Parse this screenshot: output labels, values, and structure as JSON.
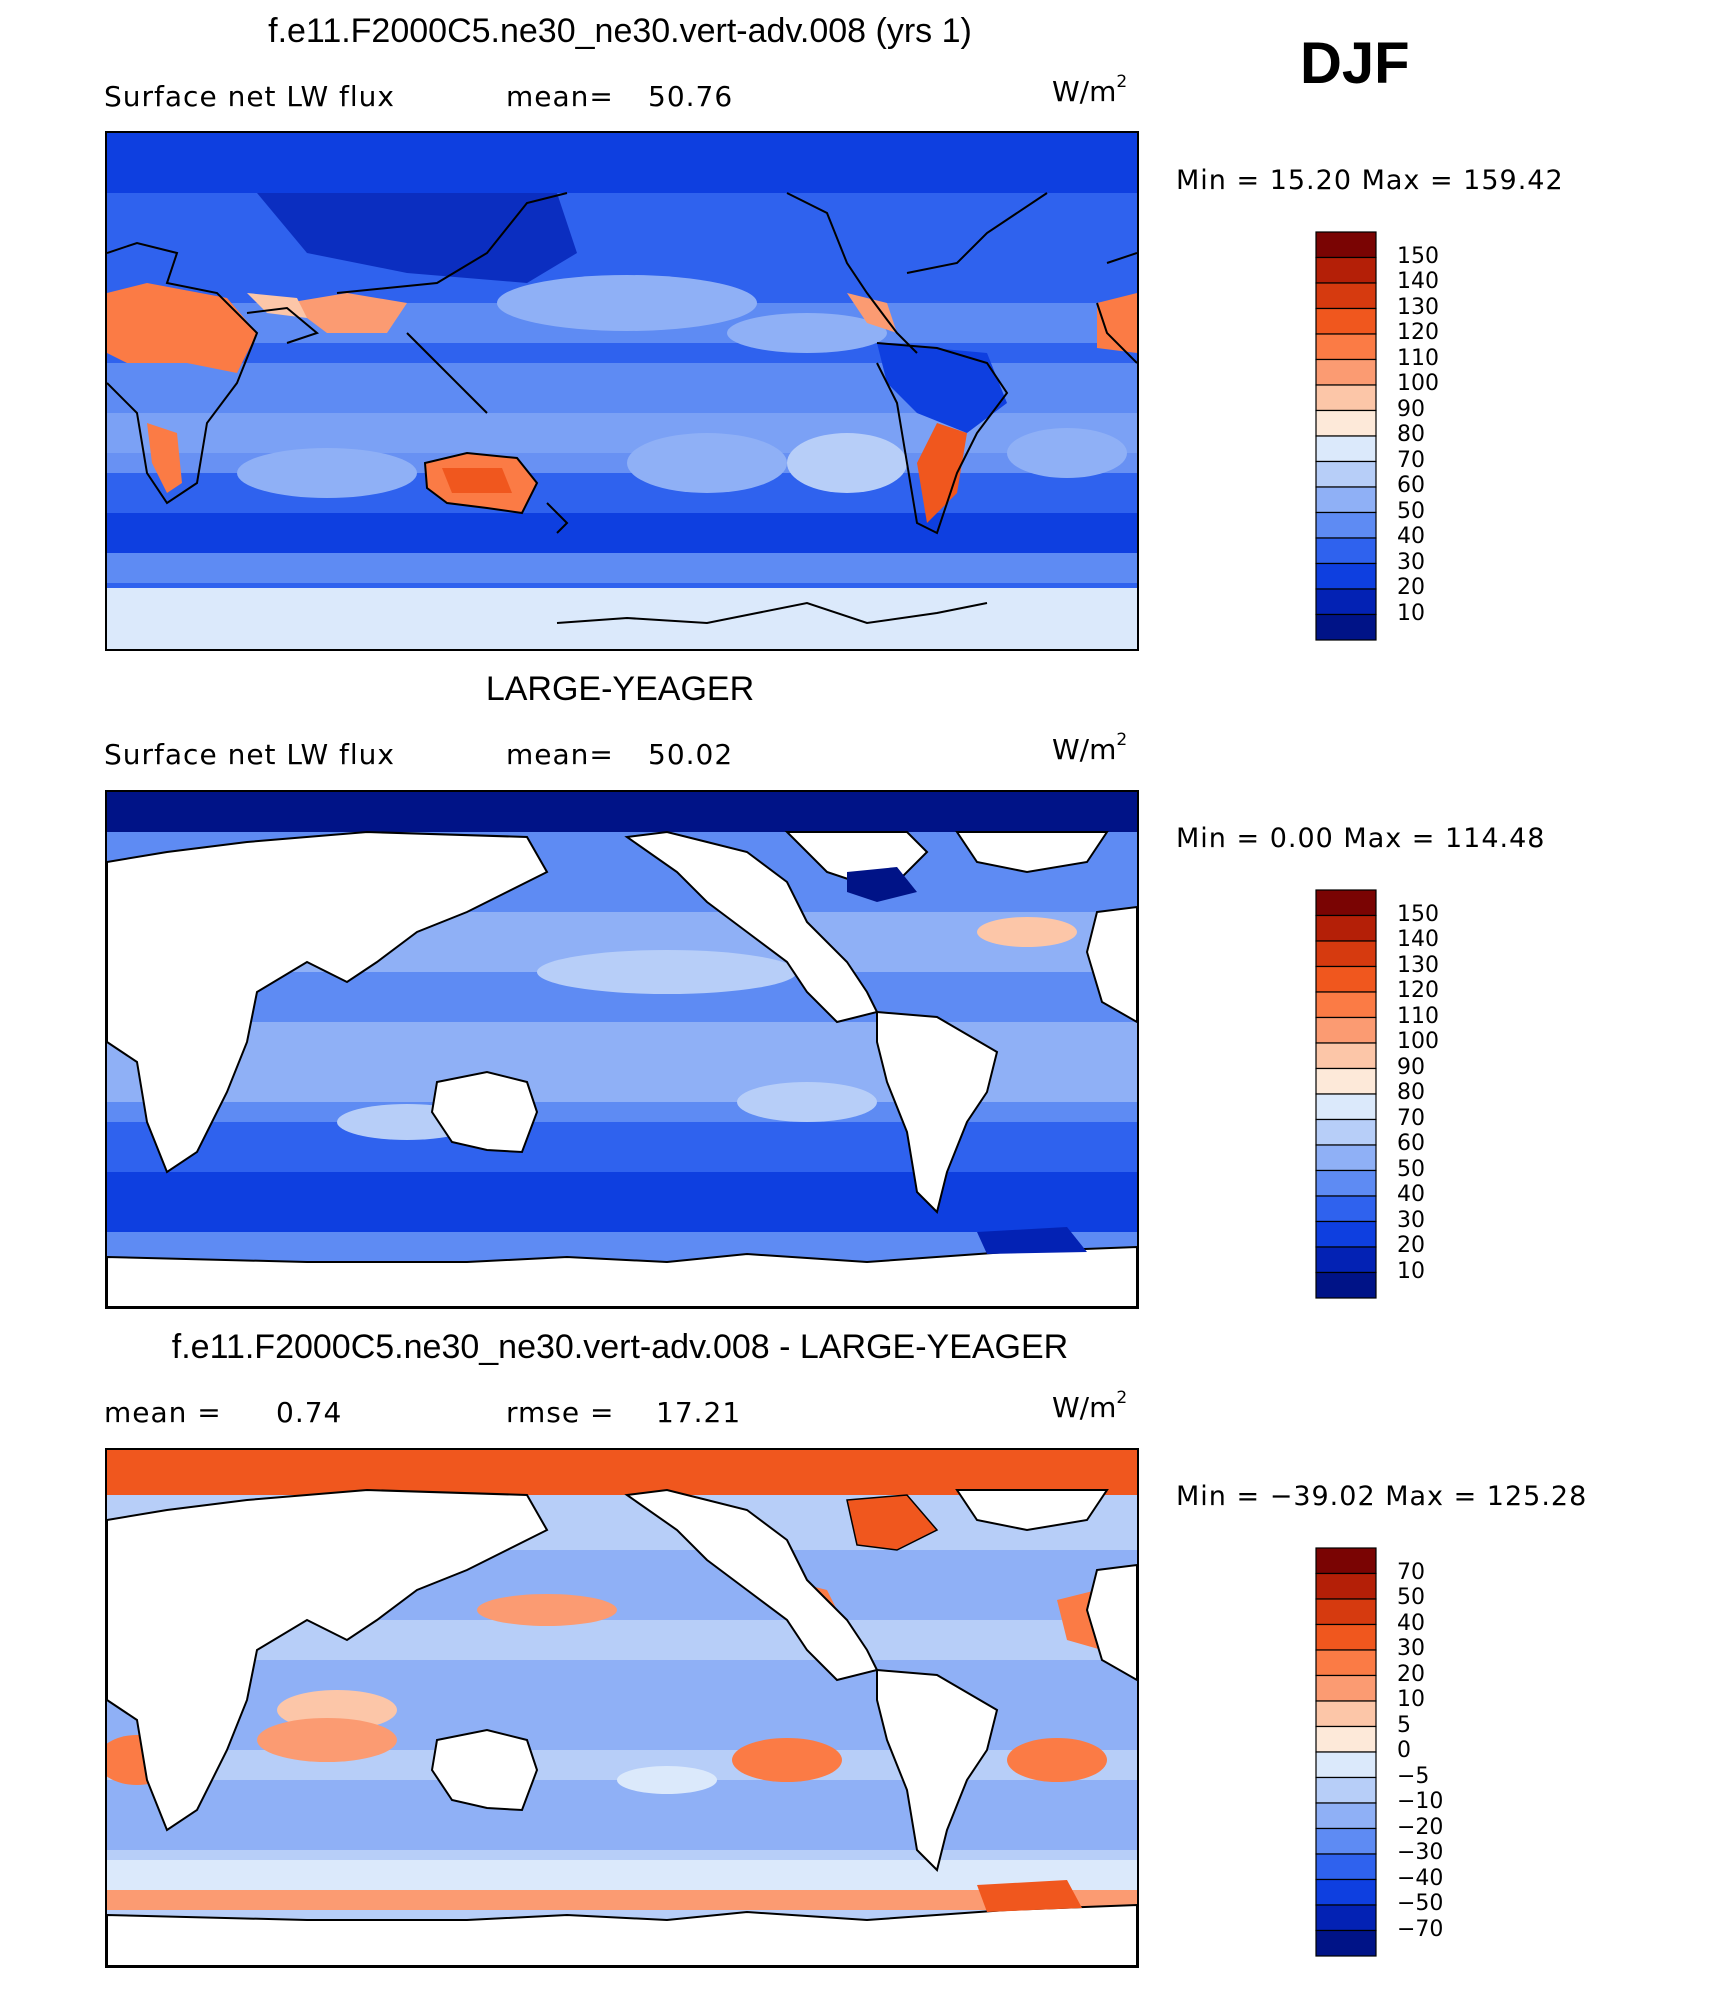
{
  "season_label": "DJF",
  "panels": [
    {
      "title": "f.e11.F2000C5.ne30_ne30.vert-adv.008 (yrs 1)",
      "left_label": "Surface net LW flux",
      "middle_label": "mean=",
      "middle_value": "50.76",
      "units": "W/m",
      "units_exp": "2",
      "minmax": "Min =   15.20 Max = 159.42"
    },
    {
      "title": "LARGE-YEAGER",
      "left_label": "Surface net LW flux",
      "middle_label": "mean=",
      "middle_value": "50.02",
      "units": "W/m",
      "units_exp": "2",
      "minmax": "Min =    0.00 Max = 114.48"
    },
    {
      "title": "f.e11.F2000C5.ne30_ne30.vert-adv.008 - LARGE-YEAGER",
      "left_label": "mean =",
      "left_value": "0.74",
      "middle_label": "rmse =",
      "middle_value": "17.21",
      "units": "W/m",
      "units_exp": "2",
      "minmax": "Min = −39.02 Max = 125.28"
    }
  ],
  "chart_data": [
    {
      "type": "heatmap",
      "title": "f.e11.F2000C5.ne30_ne30.vert-adv.008 (yrs 1)",
      "variable": "Surface net LW flux",
      "units": "W/m2",
      "mean": 50.76,
      "min": 15.2,
      "max": 159.42,
      "colorbar_levels": [
        150,
        140,
        130,
        120,
        110,
        100,
        90,
        80,
        70,
        60,
        50,
        40,
        30,
        20,
        10
      ],
      "colorbar_colors": [
        "#7a0403",
        "#b41f07",
        "#d63a0f",
        "#f0571e",
        "#fb7b45",
        "#fb9b72",
        "#fcc6a8",
        "#fde9d9",
        "#dbe9fb",
        "#b7cef8",
        "#8fb0f6",
        "#5e8bf3",
        "#2f62ee",
        "#0e3fe0",
        "#0322b4",
        "#001387"
      ]
    },
    {
      "type": "heatmap",
      "title": "LARGE-YEAGER",
      "variable": "Surface net LW flux",
      "units": "W/m2",
      "mean": 50.02,
      "min": 0.0,
      "max": 114.48,
      "colorbar_levels": [
        150,
        140,
        130,
        120,
        110,
        100,
        90,
        80,
        70,
        60,
        50,
        40,
        30,
        20,
        10
      ],
      "colorbar_colors": [
        "#7a0403",
        "#b41f07",
        "#d63a0f",
        "#f0571e",
        "#fb7b45",
        "#fb9b72",
        "#fcc6a8",
        "#fde9d9",
        "#dbe9fb",
        "#b7cef8",
        "#8fb0f6",
        "#5e8bf3",
        "#2f62ee",
        "#0e3fe0",
        "#0322b4",
        "#001387"
      ]
    },
    {
      "type": "heatmap",
      "title": "f.e11.F2000C5.ne30_ne30.vert-adv.008 - LARGE-YEAGER",
      "units": "W/m2",
      "mean": 0.74,
      "rmse": 17.21,
      "min": -39.02,
      "max": 125.28,
      "colorbar_levels": [
        "70",
        "50",
        "40",
        "30",
        "20",
        "10",
        "5",
        "0",
        "−5",
        "−10",
        "−20",
        "−30",
        "−40",
        "−50",
        "−70"
      ],
      "colorbar_colors": [
        "#7a0403",
        "#b41f07",
        "#d63a0f",
        "#f0571e",
        "#fb7b45",
        "#fb9b72",
        "#fcc6a8",
        "#fde9d9",
        "#dbe9fb",
        "#b7cef8",
        "#8fb0f6",
        "#5e8bf3",
        "#2f62ee",
        "#0e3fe0",
        "#0322b4",
        "#001387"
      ]
    }
  ]
}
